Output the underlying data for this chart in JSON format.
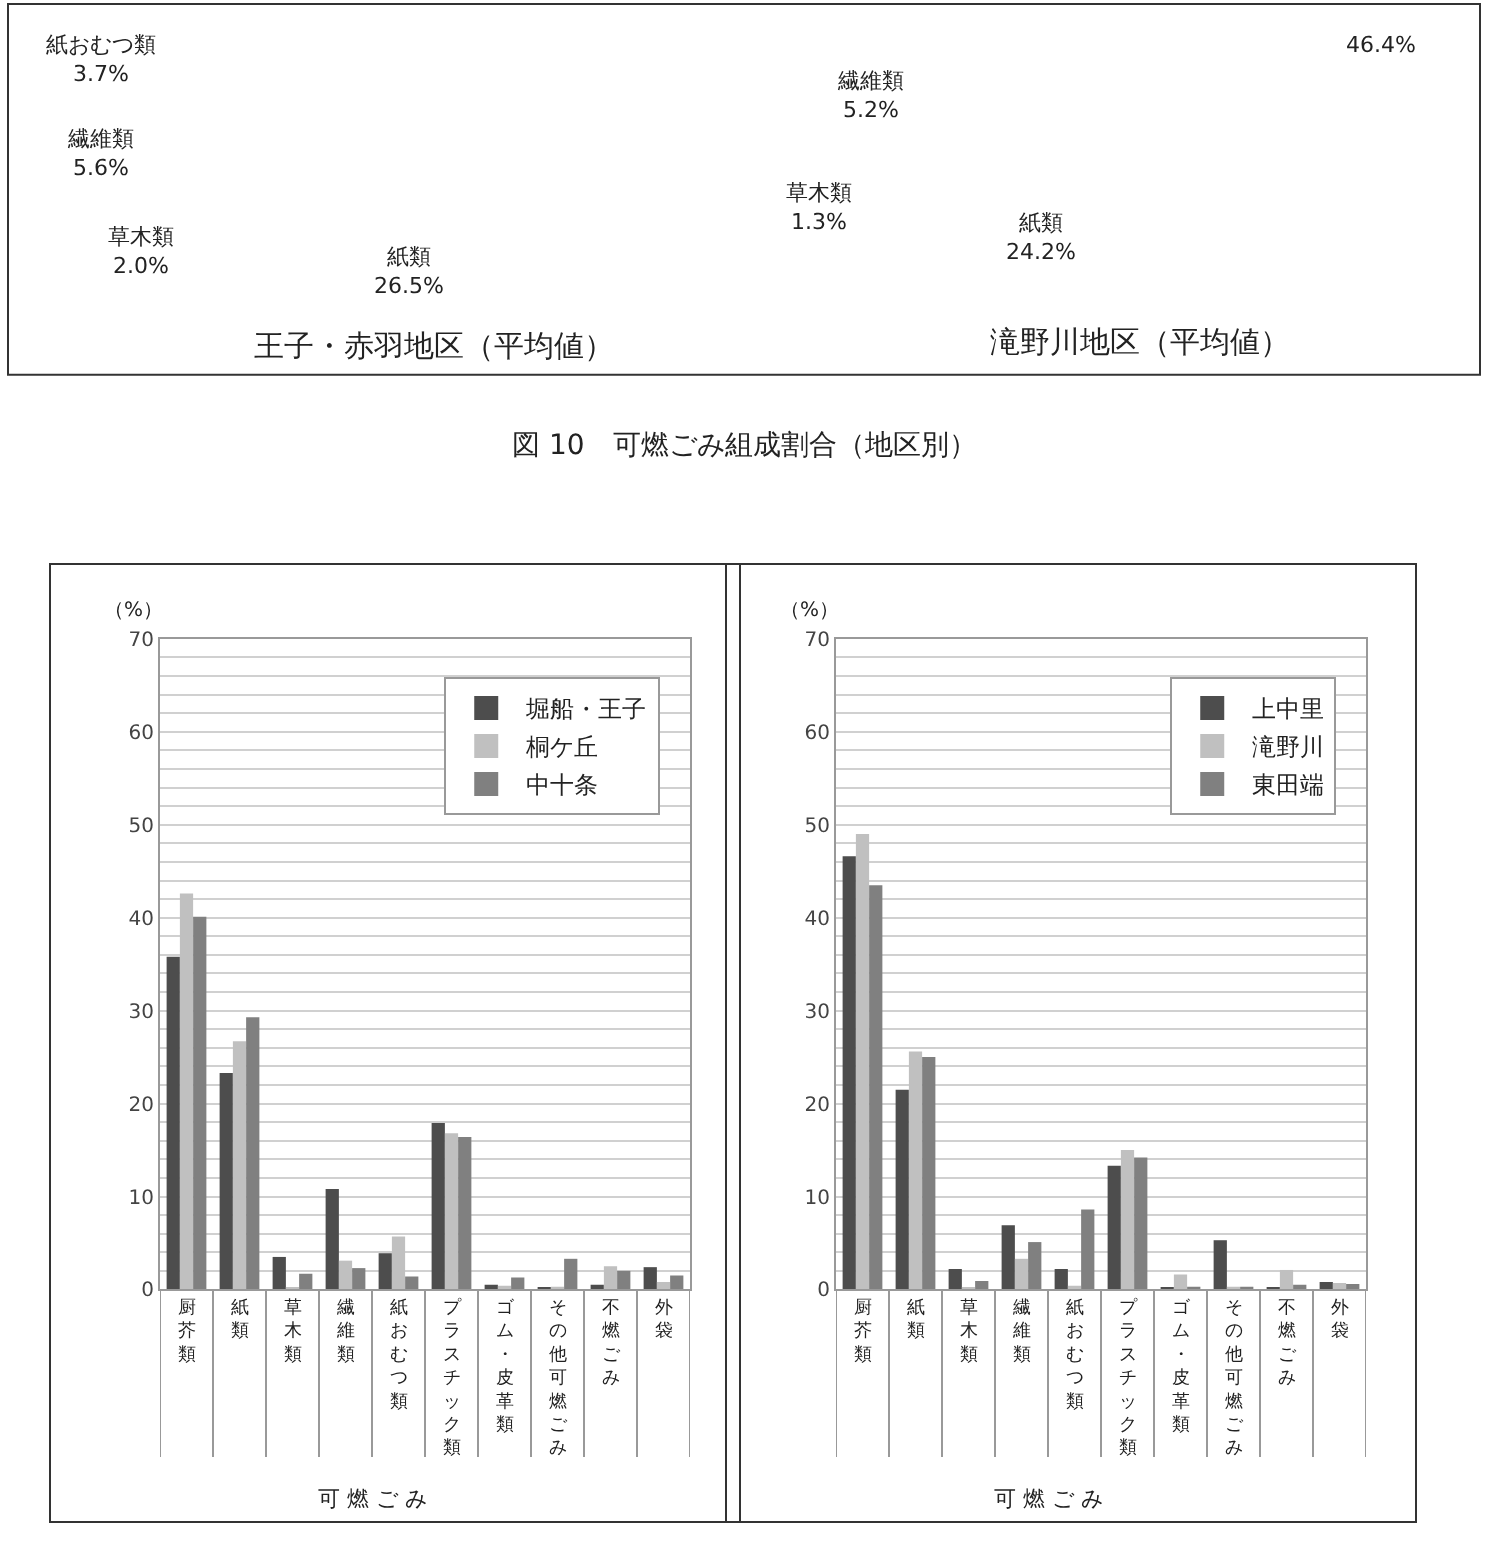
{
  "chart_data": [
    {
      "type": "other",
      "title": "図 10　可燃ごみ組成割合（地区別）",
      "annotations": [
        "紙おむつ類\n3.7%",
        "繊維類\n5.6%",
        "草木類\n2.0%",
        "紙類\n26.5%",
        "王子・赤羽地区（平均値）",
        "繊維類\n5.2%",
        "草木類\n1.3%",
        "紙類\n24.2%",
        "46.4%",
        "滝野川地区（平均値）"
      ]
    },
    {
      "type": "bar",
      "ylabel": "（%）",
      "xlabel": "可 燃 ご み",
      "categories": [
        "厨芥類",
        "紙類",
        "草木類",
        "繊維類",
        "紙おむつ類",
        "プラスチック類",
        "ゴム・皮革類",
        "その他可燃ごみ",
        "不燃ごみ",
        "外袋"
      ],
      "series": [
        {
          "name": "堀船・王子",
          "color": "#4d4d4d",
          "values": [
            35.8,
            23.3,
            3.5,
            10.8,
            3.9,
            17.9,
            0.5,
            0.1,
            0.5,
            2.4
          ]
        },
        {
          "name": "桐ケ丘",
          "color": "#c0c0c0",
          "values": [
            42.6,
            26.7,
            0.2,
            3.1,
            5.7,
            16.8,
            0.4,
            0.3,
            2.5,
            0.8
          ]
        },
        {
          "name": "中十条",
          "color": "#808080",
          "values": [
            40.1,
            29.3,
            1.7,
            2.3,
            1.4,
            16.4,
            1.3,
            3.3,
            2.0,
            1.5
          ]
        }
      ],
      "ylim": [
        0,
        70
      ],
      "yticks": [
        0,
        {
          "value": 2,
          "label": null
        },
        {
          "value": 4,
          "label": null
        },
        {
          "value": 6,
          "label": null
        },
        {
          "value": 8,
          "label": null
        },
        10,
        {
          "value": 12,
          "label": null
        },
        {
          "value": 14,
          "label": null
        },
        {
          "value": 16,
          "label": null
        },
        {
          "value": 18,
          "label": null
        },
        20,
        {
          "value": 22,
          "label": null
        },
        {
          "value": 24,
          "label": null
        },
        {
          "value": 26,
          "label": null
        },
        {
          "value": 28,
          "label": null
        },
        30,
        {
          "value": 32,
          "label": null
        },
        {
          "value": 34,
          "label": null
        },
        {
          "value": 36,
          "label": null
        },
        {
          "value": 38,
          "label": null
        },
        40,
        {
          "value": 42,
          "label": null
        },
        {
          "value": 44,
          "label": null
        },
        {
          "value": 46,
          "label": null
        },
        {
          "value": 48,
          "label": null
        },
        50,
        {
          "value": 52,
          "label": null
        },
        {
          "value": 54,
          "label": null
        },
        {
          "value": 56,
          "label": null
        },
        {
          "value": 58,
          "label": null
        },
        60,
        {
          "value": 62,
          "label": null
        },
        {
          "value": 64,
          "label": null
        },
        {
          "value": 66,
          "label": null
        },
        {
          "value": 68,
          "label": null
        },
        70
      ],
      "grid": "y",
      "legend": "top right"
    },
    {
      "type": "bar",
      "ylabel": "（%）",
      "xlabel": "可 燃 ご み",
      "categories": [
        "厨芥類",
        "紙類",
        "草木類",
        "繊維類",
        "紙おむつ類",
        "プラスチック類",
        "ゴム・皮革類",
        "その他可燃ごみ",
        "不燃ごみ",
        "外袋"
      ],
      "series": [
        {
          "name": "上中里",
          "color": "#4d4d4d",
          "values": [
            46.6,
            21.5,
            2.2,
            6.9,
            2.2,
            13.3,
            0.1,
            5.3,
            0.1,
            0.8
          ]
        },
        {
          "name": "滝野川",
          "color": "#c0c0c0",
          "values": [
            49.0,
            25.6,
            0.2,
            3.3,
            0.4,
            15.0,
            1.6,
            0.3,
            2.1,
            0.7
          ]
        },
        {
          "name": "東田端",
          "color": "#808080",
          "values": [
            43.5,
            25.0,
            0.9,
            5.1,
            8.6,
            14.2,
            0.3,
            0.3,
            0.5,
            0.6
          ]
        }
      ],
      "ylim": [
        0,
        70
      ],
      "yticks": [
        0,
        {
          "value": 2,
          "label": null
        },
        {
          "value": 4,
          "label": null
        },
        {
          "value": 6,
          "label": null
        },
        {
          "value": 8,
          "label": null
        },
        10,
        {
          "value": 12,
          "label": null
        },
        {
          "value": 14,
          "label": null
        },
        {
          "value": 16,
          "label": null
        },
        {
          "value": 18,
          "label": null
        },
        20,
        {
          "value": 22,
          "label": null
        },
        {
          "value": 24,
          "label": null
        },
        {
          "value": 26,
          "label": null
        },
        {
          "value": 28,
          "label": null
        },
        30,
        {
          "value": 32,
          "label": null
        },
        {
          "value": 34,
          "label": null
        },
        {
          "value": 36,
          "label": null
        },
        {
          "value": 38,
          "label": null
        },
        40,
        {
          "value": 42,
          "label": null
        },
        {
          "value": 44,
          "label": null
        },
        {
          "value": 46,
          "label": null
        },
        {
          "value": 48,
          "label": null
        },
        50,
        {
          "value": 52,
          "label": null
        },
        {
          "value": 54,
          "label": null
        },
        {
          "value": 56,
          "label": null
        },
        {
          "value": 58,
          "label": null
        },
        60,
        {
          "value": 62,
          "label": null
        },
        {
          "value": 64,
          "label": null
        },
        {
          "value": 66,
          "label": null
        },
        {
          "value": 68,
          "label": null
        },
        70
      ],
      "grid": "y",
      "legend": "top right"
    }
  ]
}
